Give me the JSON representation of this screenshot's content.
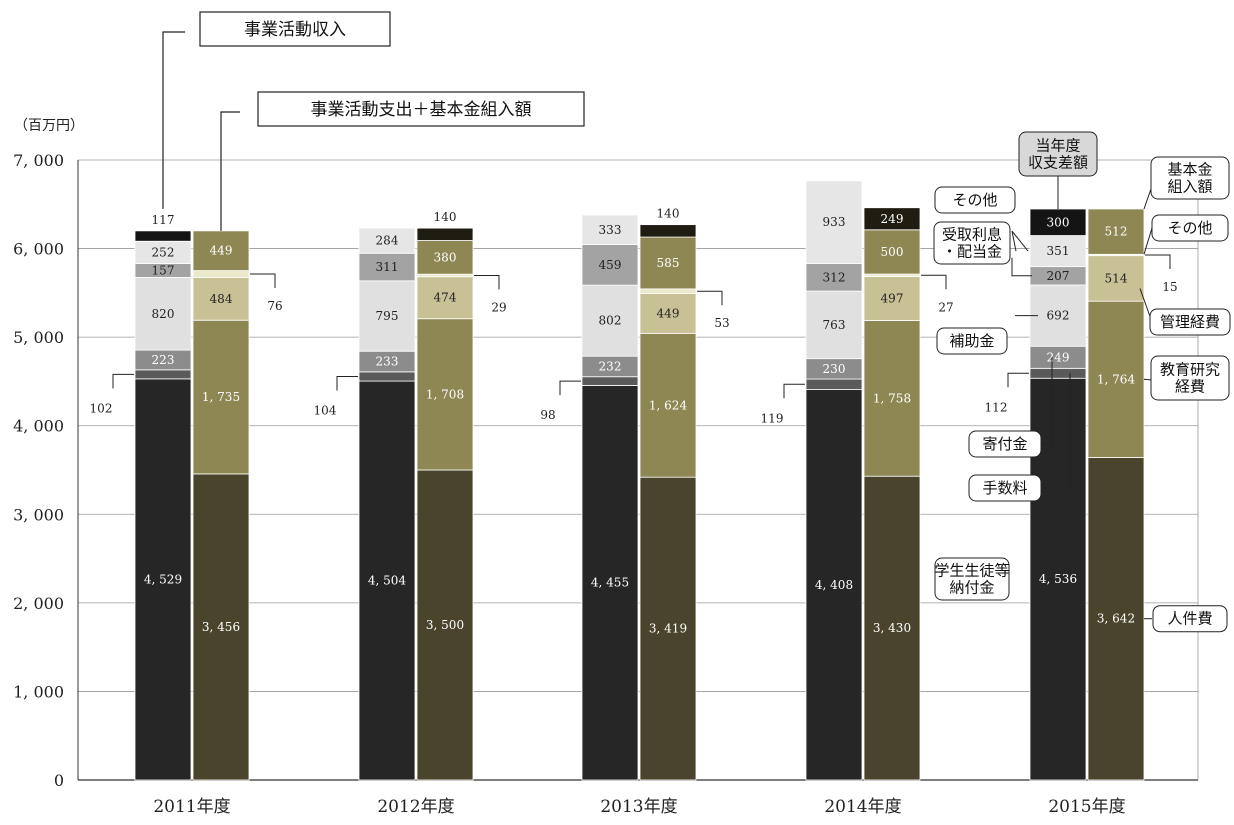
{
  "chart_data": {
    "type": "bar",
    "stacked": true,
    "unit_label": "（百万円）",
    "ylim": [
      0,
      7000
    ],
    "yticks": [
      "0",
      "1, 000",
      "2, 000",
      "3, 000",
      "4, 000",
      "5, 000",
      "6, 000",
      "7, 000"
    ],
    "categories": [
      "2011年度",
      "2012年度",
      "2013年度",
      "2014年度",
      "2015年度"
    ],
    "group_titles": {
      "income": "事業活動収入",
      "expense": "事業活動支出＋基本金組入額"
    },
    "income_series": [
      {
        "name": "学生生徒等納付金",
        "color": "#262626",
        "text_color": "#ffffff",
        "values": [
          4529,
          4504,
          4455,
          4408,
          4536
        ],
        "labels": [
          "4, 529",
          "4, 504",
          "4, 455",
          "4, 408",
          "4, 536"
        ]
      },
      {
        "name": "手数料",
        "color": "#5a5a5a",
        "text_color": "#ffffff",
        "values": [
          102,
          104,
          98,
          119,
          112
        ],
        "labels": [
          "102",
          "104",
          "98",
          "119",
          "112"
        ]
      },
      {
        "name": "寄付金",
        "color": "#8c8c8c",
        "text_color": "#ffffff",
        "values": [
          223,
          233,
          232,
          230,
          249
        ],
        "labels": [
          "223",
          "233",
          "232",
          "230",
          "249"
        ]
      },
      {
        "name": "補助金",
        "color": "#e0e0e0",
        "text_color": "#222222",
        "values": [
          820,
          795,
          802,
          763,
          692
        ],
        "labels": [
          "820",
          "795",
          "802",
          "763",
          "692"
        ]
      },
      {
        "name": "受取利息・配当金",
        "color": "#a3a3a3",
        "text_color": "#222222",
        "values": [
          157,
          311,
          459,
          312,
          207
        ],
        "labels": [
          "157",
          "311",
          "459",
          "312",
          "207"
        ]
      },
      {
        "name": "その他",
        "color": "#e6e6e6",
        "text_color": "#222222",
        "values": [
          252,
          284,
          333,
          933,
          351
        ],
        "labels": [
          "252",
          "284",
          "333",
          "933",
          "351"
        ]
      },
      {
        "name": "当年度収支差額",
        "color": "#141414",
        "text_color": "#ffffff",
        "values": [
          117,
          0,
          0,
          0,
          300
        ],
        "labels": [
          "117",
          "",
          "",
          "",
          "300"
        ]
      }
    ],
    "expense_series": [
      {
        "name": "人件費",
        "color": "#4a442c",
        "text_color": "#ffffff",
        "values": [
          3456,
          3500,
          3419,
          3430,
          3642
        ],
        "labels": [
          "3, 456",
          "3, 500",
          "3, 419",
          "3, 430",
          "3, 642"
        ]
      },
      {
        "name": "教育研究経費",
        "color": "#8e8753",
        "text_color": "#ffffff",
        "values": [
          1735,
          1708,
          1624,
          1758,
          1764
        ],
        "labels": [
          "1, 735",
          "1, 708",
          "1, 624",
          "1, 758",
          "1, 764"
        ]
      },
      {
        "name": "管理経費",
        "color": "#c8c196",
        "text_color": "#222222",
        "values": [
          484,
          474,
          449,
          497,
          514
        ],
        "labels": [
          "484",
          "474",
          "449",
          "497",
          "514"
        ]
      },
      {
        "name": "その他",
        "color": "#ece8cc",
        "text_color": "#222222",
        "values": [
          76,
          29,
          53,
          27,
          15
        ],
        "labels": [
          "76",
          "29",
          "53",
          "27",
          "15"
        ]
      },
      {
        "name": "基本金組入額",
        "color": "#8e8753",
        "text_color": "#ffffff",
        "values": [
          449,
          380,
          585,
          500,
          512
        ],
        "labels": [
          "449",
          "380",
          "585",
          "500",
          "512"
        ]
      },
      {
        "name": "当年度収支差額",
        "color": "#1f1c12",
        "text_color": "#ffffff",
        "values": [
          0,
          140,
          140,
          249,
          0
        ],
        "labels": [
          "",
          "140",
          "140",
          "249",
          ""
        ]
      }
    ],
    "callouts": {
      "income_difference": "当年度\n収支差額",
      "income_other": "その他",
      "income_interest": "受取利息\n・配当金",
      "income_subsidy": "補助金",
      "income_donation": "寄付金",
      "income_fees": "手数料",
      "income_tuition": "学生生徒等\n納付金",
      "expense_endowment": "基本金\n組入額",
      "expense_other": "その他",
      "expense_admin": "管理経費",
      "expense_education": "教育研究\n経費",
      "expense_personnel": "人件費"
    }
  }
}
